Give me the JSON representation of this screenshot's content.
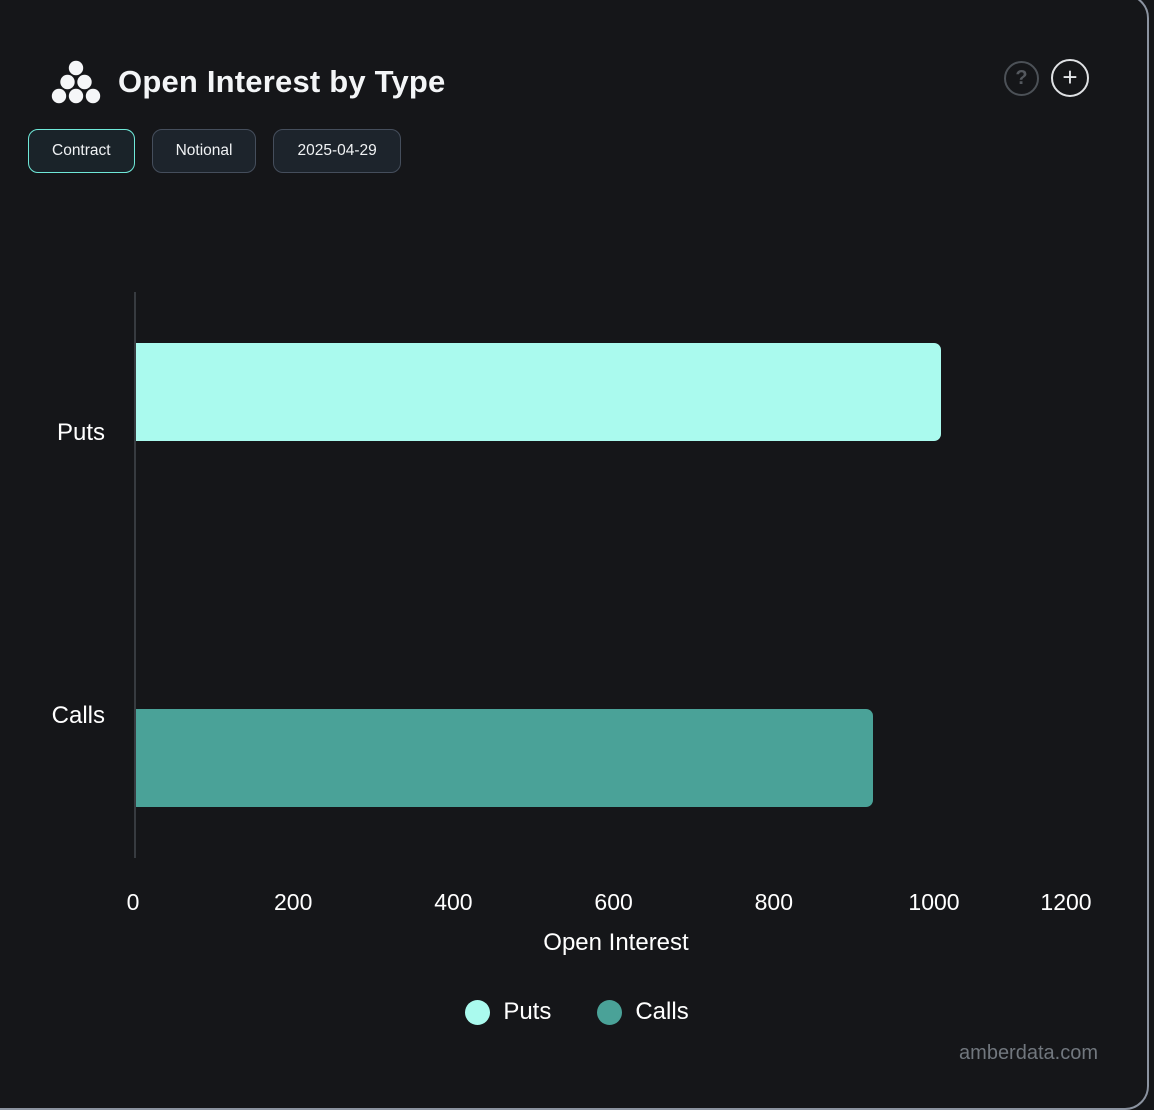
{
  "header": {
    "title": "Open Interest by Type",
    "help_icon_glyph": "?",
    "add_icon_glyph": "+"
  },
  "toolbar": {
    "buttons": [
      {
        "label": "Contract",
        "active": true
      },
      {
        "label": "Notional",
        "active": false
      },
      {
        "label": "2025-04-29",
        "active": false
      }
    ]
  },
  "colors": {
    "background": "#151619",
    "puts": "#aafaee",
    "calls": "#4aa298",
    "active_pill_border": "#6fe8d8",
    "axis_line": "#373b40",
    "panel_border": "#8b93a0"
  },
  "chart_data": {
    "type": "bar",
    "orientation": "horizontal",
    "categories": [
      "Puts",
      "Calls"
    ],
    "series": [
      {
        "name": "Puts",
        "value": 1005,
        "color": "#aafaee"
      },
      {
        "name": "Calls",
        "value": 920,
        "color": "#4aa298"
      }
    ],
    "xlabel": "Open Interest",
    "xticks": [
      0,
      200,
      400,
      600,
      800,
      1000,
      1200
    ],
    "xlim": [
      0,
      1200
    ],
    "grid": false,
    "legend": [
      "Puts",
      "Calls"
    ],
    "legend_position": "bottom"
  },
  "footer": {
    "watermark": "amberdata.com"
  }
}
